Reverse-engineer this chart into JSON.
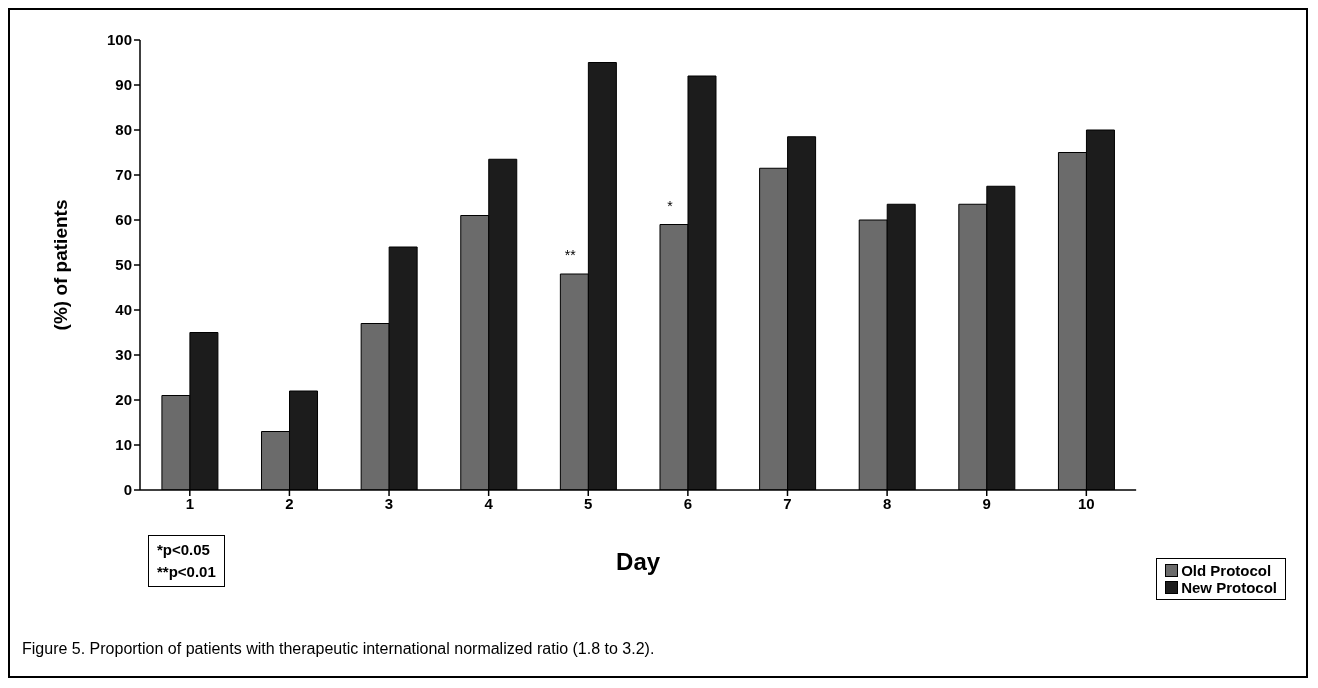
{
  "chart_data": {
    "type": "bar",
    "categories": [
      "1",
      "2",
      "3",
      "4",
      "5",
      "6",
      "7",
      "8",
      "9",
      "10"
    ],
    "series": [
      {
        "name": "Old Protocol",
        "color": "#6b6b6b",
        "values": [
          21,
          13,
          37,
          61,
          48,
          59,
          71.5,
          60,
          63.5,
          75
        ]
      },
      {
        "name": "New Protocol",
        "color": "#1c1c1c",
        "values": [
          35,
          22,
          54,
          73.5,
          95,
          92,
          78.5,
          63.5,
          67.5,
          80
        ]
      }
    ],
    "xlabel": "Day",
    "ylabel": "(%) of patients",
    "ylim": [
      0,
      100
    ],
    "yticks": [
      0,
      10,
      20,
      30,
      40,
      50,
      60,
      70,
      80,
      90,
      100
    ],
    "legend": "bottom right",
    "annotations": [
      {
        "text": "**",
        "x": "5",
        "y": 48
      },
      {
        "text": "*",
        "x": "6",
        "y": 59
      },
      "*p<0.05",
      "**p<0.01",
      "Figure 5. Proportion of patients with therapeutic international normalized ratio (1.8 to 3.2)."
    ]
  }
}
